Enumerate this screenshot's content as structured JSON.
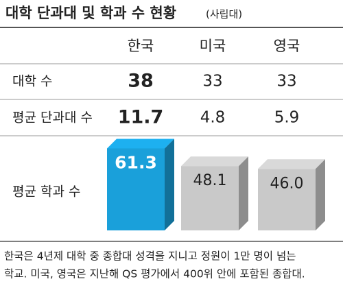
{
  "title": "대학 단과대 및 학과 수 현황",
  "subtitle": "(사립대)",
  "table": {
    "rows": [
      {
        "label": "대학 수",
        "values": [
          38,
          33,
          33
        ]
      },
      {
        "label": "평균 단과대 수",
        "values": [
          11.7,
          4.8,
          5.9
        ]
      }
    ]
  },
  "chart_data": {
    "type": "bar",
    "label": "평균 학과 수",
    "categories": [
      "한국",
      "미국",
      "영국"
    ],
    "values": [
      61.3,
      48.1,
      46.0
    ],
    "value_labels": [
      "61.3",
      "48.1",
      "46.0"
    ],
    "colors": [
      "#1aa0da",
      "#c9c9c9",
      "#c9c9c9"
    ]
  },
  "footnote": [
    "한국은 4년제 대학 중 종합대 성격을 지니고 정원이 1만 명이 넘는",
    "학교. 미국, 영국은 지난해 QS 평가에서 400위 안에 포함된 종합대."
  ]
}
